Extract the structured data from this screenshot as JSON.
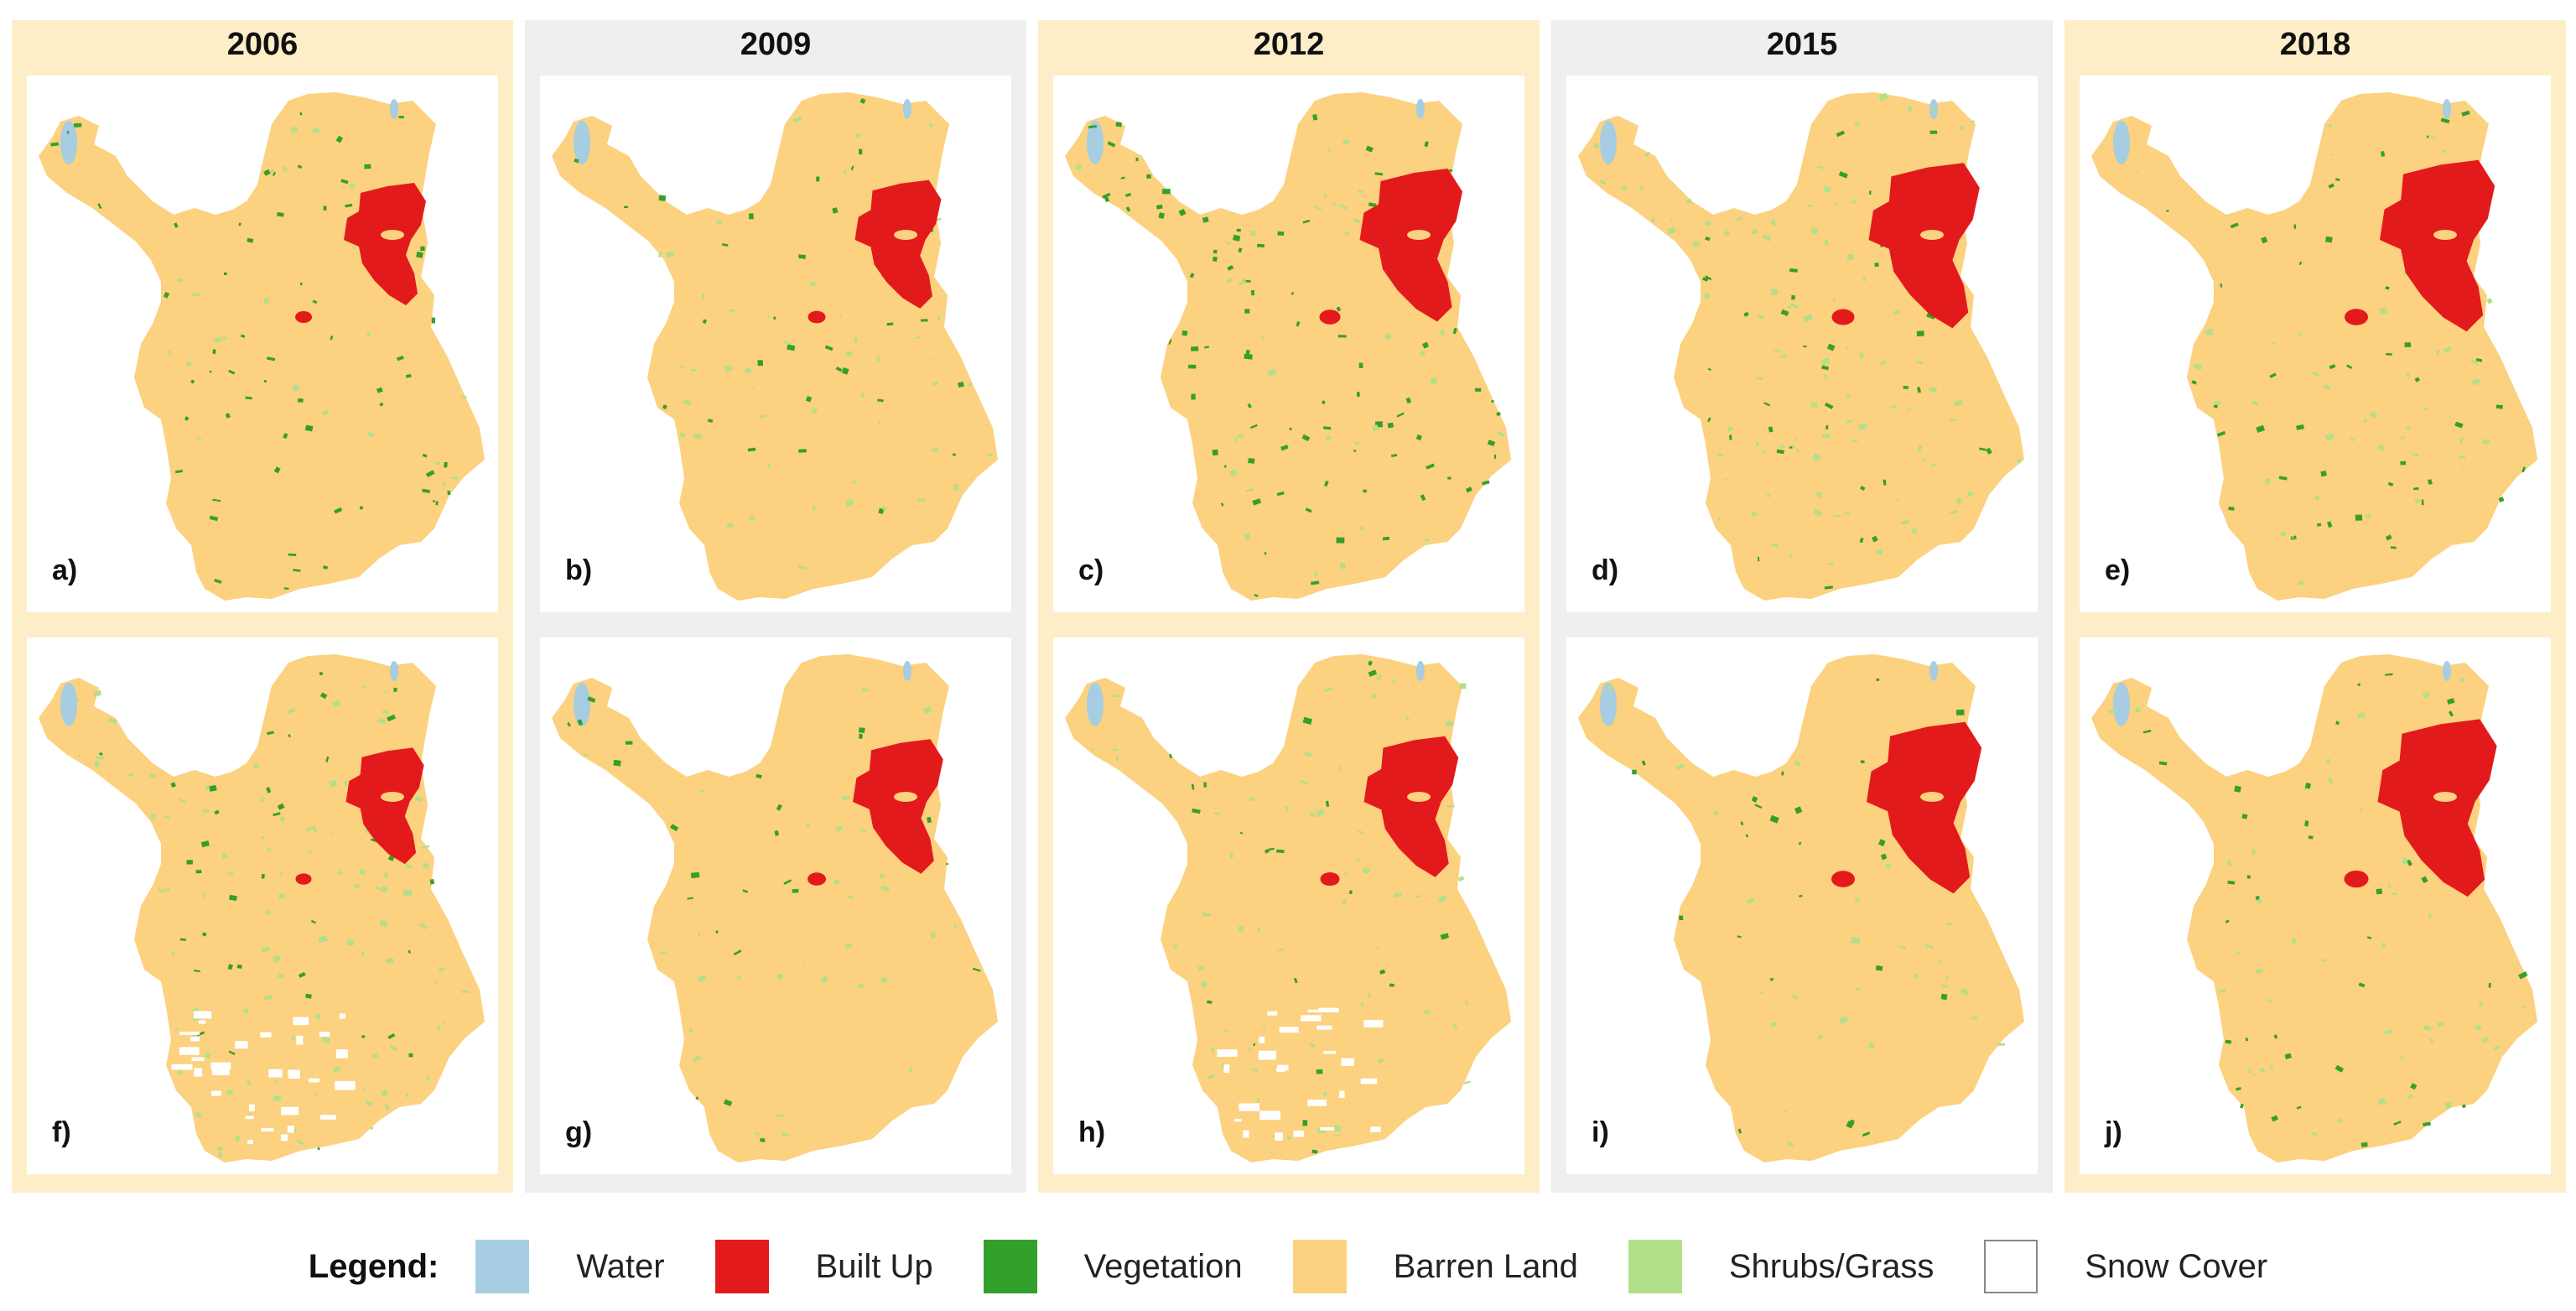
{
  "columns": [
    {
      "year": "2006",
      "bg": "#fdeec8",
      "panels": [
        {
          "label": "a)",
          "dense": 0.35,
          "shrub": 0.1,
          "builtScale": 1.0,
          "gaps": false
        },
        {
          "label": "f)",
          "dense": 0.22,
          "shrub": 0.45,
          "builtScale": 0.95,
          "gaps": true
        }
      ]
    },
    {
      "year": "2009",
      "bg": "#efefef",
      "panels": [
        {
          "label": "b)",
          "dense": 0.18,
          "shrub": 0.18,
          "builtScale": 1.05,
          "gaps": false
        },
        {
          "label": "g)",
          "dense": 0.16,
          "shrub": 0.14,
          "builtScale": 1.1,
          "gaps": false
        }
      ]
    },
    {
      "year": "2012",
      "bg": "#fdeec8",
      "panels": [
        {
          "label": "c)",
          "dense": 0.55,
          "shrub": 0.15,
          "builtScale": 1.25,
          "gaps": false
        },
        {
          "label": "h)",
          "dense": 0.12,
          "shrub": 0.3,
          "builtScale": 1.15,
          "gaps": true
        }
      ]
    },
    {
      "year": "2015",
      "bg": "#efefef",
      "panels": [
        {
          "label": "d)",
          "dense": 0.18,
          "shrub": 0.55,
          "builtScale": 1.35,
          "gaps": false
        },
        {
          "label": "i)",
          "dense": 0.18,
          "shrub": 0.12,
          "builtScale": 1.4,
          "gaps": false
        }
      ]
    },
    {
      "year": "2018",
      "bg": "#fdeec8",
      "panels": [
        {
          "label": "e)",
          "dense": 0.25,
          "shrub": 0.15,
          "builtScale": 1.4,
          "gaps": false
        },
        {
          "label": "j)",
          "dense": 0.22,
          "shrub": 0.18,
          "builtScale": 1.45,
          "gaps": false
        }
      ]
    }
  ],
  "legend": {
    "title": "Legend:",
    "items": [
      {
        "label": "Water",
        "color": "#a6cde2",
        "border": "#a6cde2"
      },
      {
        "label": "Built Up",
        "color": "#e31a1c",
        "border": "#e31a1c"
      },
      {
        "label": "Vegetation",
        "color": "#33a02c",
        "border": "#33a02c"
      },
      {
        "label": "Barren Land",
        "color": "#fcd17f",
        "border": "#fcd17f"
      },
      {
        "label": "Shrubs/Grass",
        "color": "#b2df8a",
        "border": "#b2df8a"
      },
      {
        "label": "Snow Cover",
        "color": "#ffffff",
        "border": "#888888"
      }
    ]
  }
}
